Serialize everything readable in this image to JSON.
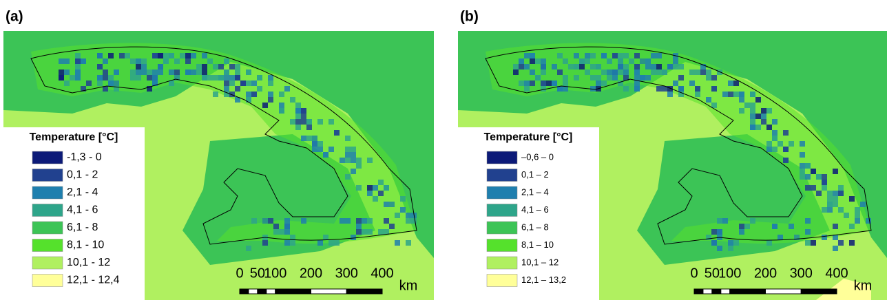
{
  "panels": [
    {
      "label": "(a)",
      "legend": {
        "title": "Temperature  [°C]",
        "items": [
          {
            "label": "-1,3 - 0",
            "color": "#0c1a78"
          },
          {
            "label": "0,1 - 2",
            "color": "#21418f"
          },
          {
            "label": "2,1 - 4",
            "color": "#1f7fae"
          },
          {
            "label": "4,1 - 6",
            "color": "#2ea58a"
          },
          {
            "label": "6,1 - 8",
            "color": "#3cc456"
          },
          {
            "label": "8,1 - 10",
            "color": "#55e12c"
          },
          {
            "label": "10,1 - 12",
            "color": "#b0f060"
          },
          {
            "label": "12,1 - 12,4",
            "color": "#ffff99"
          }
        ]
      },
      "scale_bar": {
        "ticks": [
          0,
          50,
          100,
          200,
          300,
          400
        ],
        "unit": "km"
      }
    },
    {
      "label": "(b)",
      "legend": {
        "title": "Temperature [°C]",
        "items": [
          {
            "label": "–0,6 – 0",
            "color": "#0c1a78"
          },
          {
            "label": "0,1 – 2",
            "color": "#21418f"
          },
          {
            "label": "2,1 – 4",
            "color": "#1f7fae"
          },
          {
            "label": "4,1 – 6",
            "color": "#2ea58a"
          },
          {
            "label": "6,1 – 8",
            "color": "#3cc456"
          },
          {
            "label": "8,1 – 10",
            "color": "#55e12c"
          },
          {
            "label": "10,1 – 12",
            "color": "#b0f060"
          },
          {
            "label": "12,1 – 13,2",
            "color": "#ffff99"
          }
        ]
      },
      "scale_bar": {
        "ticks": [
          0,
          50,
          100,
          200,
          300,
          400
        ],
        "unit": "km"
      }
    }
  ]
}
